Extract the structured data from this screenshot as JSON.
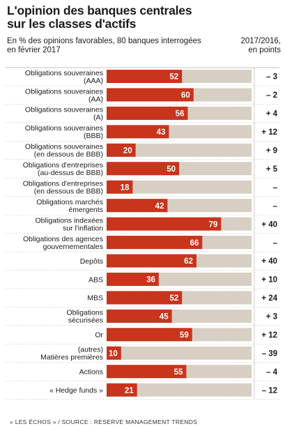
{
  "header": {
    "title_line1": "L'opinion des banques centrales",
    "title_line2": "sur les classes d'actifs",
    "subtitle_line1": "En % des opinions favorables, 80 banques interrogées",
    "subtitle_line2": "en février 2017",
    "change_line1": "2017/2016,",
    "change_line2": "en points"
  },
  "footer": "« LES ÉCHOS » / SOURCE : RESERVE MANAGEMENT TRENDS",
  "colors": {
    "bar": "#c8341c",
    "track": "#d8cfc4",
    "text": "#1a1a1a",
    "separator": "#b9aea4"
  },
  "chart_data": {
    "type": "bar",
    "orientation": "horizontal",
    "xlim": [
      0,
      100
    ],
    "categories": [
      [
        "Obligations souveraines",
        "(AAA)"
      ],
      [
        "Obligations souveraines",
        "(AA)"
      ],
      [
        "Obligations souveraines",
        "(A)"
      ],
      [
        "Obligations souveraines",
        "(BBB)"
      ],
      [
        "Obligations souveraines",
        "(en dessous de BBB)"
      ],
      [
        "Obligations d'entreprises",
        "(au-dessus de BBB)"
      ],
      [
        "Obligations d'entreprises",
        "(en dessous de BBB)"
      ],
      [
        "Obligations marchés",
        "émergents"
      ],
      [
        "Obligations indexées",
        "sur l'inflation"
      ],
      [
        "Obligations des agences",
        "gouvernementales"
      ],
      [
        "Depôts"
      ],
      [
        "ABS"
      ],
      [
        "MBS"
      ],
      [
        "Obligations",
        "sécurisées"
      ],
      [
        "Or"
      ],
      [
        "(autres)",
        "Matières premières"
      ],
      [
        "Actions"
      ],
      [
        "« Hedge funds »"
      ]
    ],
    "series": [
      {
        "values": [
          52,
          60,
          56,
          43,
          20,
          50,
          18,
          42,
          79,
          66,
          62,
          36,
          52,
          45,
          59,
          10,
          55,
          21
        ]
      }
    ],
    "change_labels": [
      "– 3",
      "– 2",
      "+ 4",
      "+ 12",
      "+ 9",
      "+ 5",
      "–",
      "–",
      "+ 40",
      "–",
      "+ 40",
      "+ 10",
      "+ 24",
      "+ 3",
      "+ 12",
      "– 39",
      "– 4",
      "– 12"
    ]
  }
}
